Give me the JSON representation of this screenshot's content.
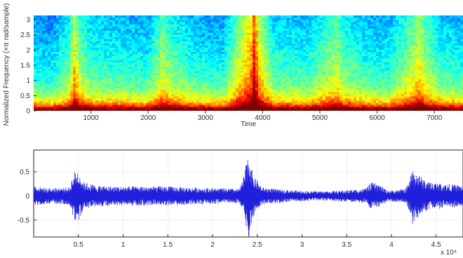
{
  "chart_data": [
    {
      "type": "heatmap",
      "title": "",
      "xlabel": "Time",
      "ylabel": "Normalized Frequency (×π rad/sample)",
      "xlim": [
        0,
        7500
      ],
      "ylim": [
        0,
        3.14
      ],
      "x_ticks": [
        1000,
        2000,
        3000,
        4000,
        5000,
        6000,
        7000
      ],
      "y_ticks": [
        0,
        0.5,
        1,
        1.5,
        2,
        2.5,
        3
      ],
      "x_tick_labels": [
        "1000",
        "2000",
        "3000",
        "4000",
        "5000",
        "6000",
        "7000"
      ],
      "y_tick_labels": [
        "0",
        "0.5",
        "1",
        "1.5",
        "2",
        "2.5",
        "3"
      ],
      "colormap": "jet",
      "grid": false,
      "onset_times": [
        700,
        2250,
        3850,
        5300,
        6750
      ],
      "energy_profile": {
        "time": [
          0,
          300,
          650,
          700,
          800,
          1000,
          1500,
          2000,
          2250,
          2400,
          2800,
          3300,
          3800,
          3850,
          3950,
          4200,
          4800,
          5300,
          5400,
          5800,
          6200,
          6750,
          6850,
          7100,
          7500
        ],
        "level": [
          0.45,
          0.42,
          0.55,
          0.75,
          0.6,
          0.5,
          0.48,
          0.46,
          0.62,
          0.55,
          0.47,
          0.45,
          0.8,
          0.95,
          0.7,
          0.5,
          0.48,
          0.62,
          0.55,
          0.48,
          0.46,
          0.68,
          0.6,
          0.5,
          0.47
        ]
      }
    },
    {
      "type": "line",
      "title": "",
      "xlabel": "",
      "ylabel": "",
      "xlim": [
        0,
        48000
      ],
      "ylim": [
        -0.85,
        0.95
      ],
      "x_ticks": [
        5000,
        10000,
        15000,
        20000,
        25000,
        30000,
        35000,
        40000,
        45000
      ],
      "y_ticks": [
        -0.5,
        0,
        0.5
      ],
      "x_tick_labels": [
        "0.5",
        "1",
        "1.5",
        "2",
        "2.5",
        "3",
        "3.5",
        "4",
        "4.5"
      ],
      "y_tick_labels": [
        "-0.5",
        "0",
        "0.5"
      ],
      "x_multiplier_label": "x 10⁴",
      "grid": true,
      "line_color": "#1f1fdc",
      "series": [
        {
          "envelope": {
            "x": [
              0,
              1500,
              4000,
              4500,
              5000,
              5500,
              7000,
              9000,
              11000,
              13000,
              15000,
              17000,
              19000,
              21000,
              23000,
              23500,
              24000,
              24500,
              25500,
              27000,
              29000,
              31000,
              33000,
              35000,
              37000,
              37800,
              38500,
              39500,
              40500,
              41500,
              42000,
              42300,
              43000,
              44000,
              46000,
              48000
            ],
            "amplitude": [
              0.22,
              0.16,
              0.18,
              0.5,
              0.55,
              0.3,
              0.22,
              0.2,
              0.2,
              0.2,
              0.2,
              0.18,
              0.17,
              0.16,
              0.15,
              0.4,
              0.95,
              0.45,
              0.18,
              0.15,
              0.12,
              0.1,
              0.1,
              0.12,
              0.15,
              0.28,
              0.25,
              0.12,
              0.12,
              0.15,
              0.3,
              0.6,
              0.45,
              0.3,
              0.25,
              0.22
            ]
          }
        }
      ]
    }
  ]
}
